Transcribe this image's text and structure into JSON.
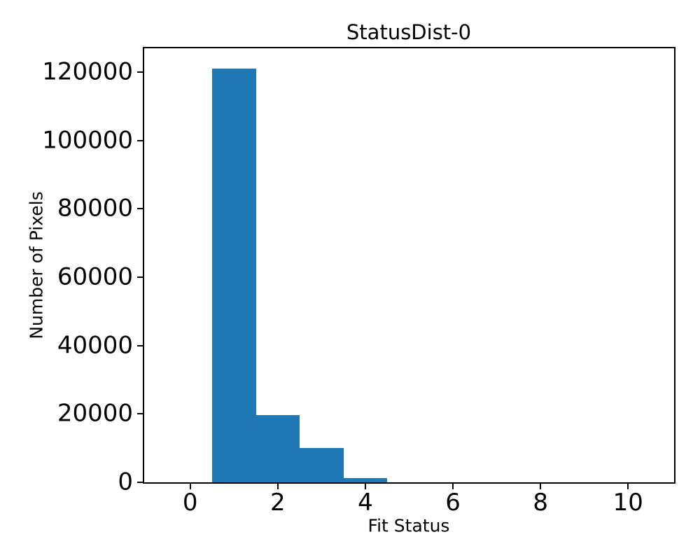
{
  "chart_data": {
    "type": "bar",
    "title": "StatusDist-0",
    "xlabel": "Fit Status",
    "ylabel": "Number of Pixels",
    "bar_color": "#1f77b4",
    "bin_centers": [
      1,
      2,
      3,
      4
    ],
    "bin_width": 1,
    "counts": [
      121000,
      19700,
      10000,
      1300
    ],
    "xticks": [
      0,
      2,
      4,
      6,
      8,
      10
    ],
    "yticks": [
      0,
      20000,
      40000,
      60000,
      80000,
      100000,
      120000
    ],
    "xlim": [
      -1.05,
      11.05
    ],
    "ylim": [
      0,
      127000
    ],
    "grid": false,
    "legend": null
  }
}
